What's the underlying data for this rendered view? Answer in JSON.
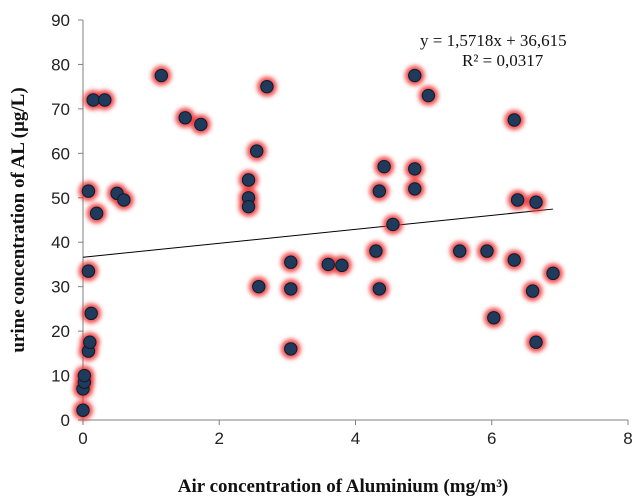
{
  "chart_data": {
    "type": "scatter",
    "xlabel": "Air concentration of Aluminium (mg/m³)",
    "ylabel": "urine concentration of AL (µg/L)",
    "xlim": [
      0,
      8
    ],
    "ylim": [
      0,
      90
    ],
    "xticks": [
      "0",
      "2",
      "4",
      "6",
      "8"
    ],
    "yticks": [
      "0",
      "10",
      "20",
      "30",
      "40",
      "50",
      "60",
      "70",
      "80",
      "90"
    ],
    "grid": false,
    "marker_color": "#1f3a5a",
    "glow_color": "#ee3333",
    "points": [
      {
        "x": 0.0,
        "y": 2.2
      },
      {
        "x": 0.0,
        "y": 7.0
      },
      {
        "x": 0.02,
        "y": 8.5
      },
      {
        "x": 0.02,
        "y": 10.0
      },
      {
        "x": 0.08,
        "y": 15.5
      },
      {
        "x": 0.1,
        "y": 17.5
      },
      {
        "x": 0.12,
        "y": 24.0
      },
      {
        "x": 0.08,
        "y": 33.5
      },
      {
        "x": 0.2,
        "y": 46.5
      },
      {
        "x": 0.08,
        "y": 51.5
      },
      {
        "x": 0.15,
        "y": 72.0
      },
      {
        "x": 0.32,
        "y": 72.0
      },
      {
        "x": 0.5,
        "y": 51.0
      },
      {
        "x": 0.6,
        "y": 49.5
      },
      {
        "x": 1.15,
        "y": 77.5
      },
      {
        "x": 1.5,
        "y": 68.0
      },
      {
        "x": 1.73,
        "y": 66.5
      },
      {
        "x": 2.43,
        "y": 54.0
      },
      {
        "x": 2.43,
        "y": 50.0
      },
      {
        "x": 2.43,
        "y": 48.0
      },
      {
        "x": 2.55,
        "y": 60.5
      },
      {
        "x": 2.58,
        "y": 30.0
      },
      {
        "x": 2.7,
        "y": 75.0
      },
      {
        "x": 3.05,
        "y": 35.5
      },
      {
        "x": 3.05,
        "y": 29.5
      },
      {
        "x": 3.05,
        "y": 16.0
      },
      {
        "x": 3.6,
        "y": 35.0
      },
      {
        "x": 3.8,
        "y": 34.8
      },
      {
        "x": 4.3,
        "y": 38.0
      },
      {
        "x": 4.35,
        "y": 51.5
      },
      {
        "x": 4.35,
        "y": 29.5
      },
      {
        "x": 4.42,
        "y": 57.0
      },
      {
        "x": 4.55,
        "y": 44.0
      },
      {
        "x": 4.87,
        "y": 77.5
      },
      {
        "x": 4.87,
        "y": 56.5
      },
      {
        "x": 4.87,
        "y": 52.0
      },
      {
        "x": 5.07,
        "y": 73.0
      },
      {
        "x": 5.53,
        "y": 38.0
      },
      {
        "x": 5.93,
        "y": 38.0
      },
      {
        "x": 6.03,
        "y": 23.0
      },
      {
        "x": 6.33,
        "y": 67.5
      },
      {
        "x": 6.33,
        "y": 36.0
      },
      {
        "x": 6.38,
        "y": 49.5
      },
      {
        "x": 6.6,
        "y": 29.0
      },
      {
        "x": 6.65,
        "y": 49.0
      },
      {
        "x": 6.65,
        "y": 17.5
      },
      {
        "x": 6.9,
        "y": 33.0
      }
    ],
    "trendline": {
      "slope": 1.5718,
      "intercept": 36.615,
      "x_range": [
        0,
        6.9
      ],
      "equation": "y = 1,5718x + 36,615",
      "r2": "R² = 0,0317"
    }
  }
}
